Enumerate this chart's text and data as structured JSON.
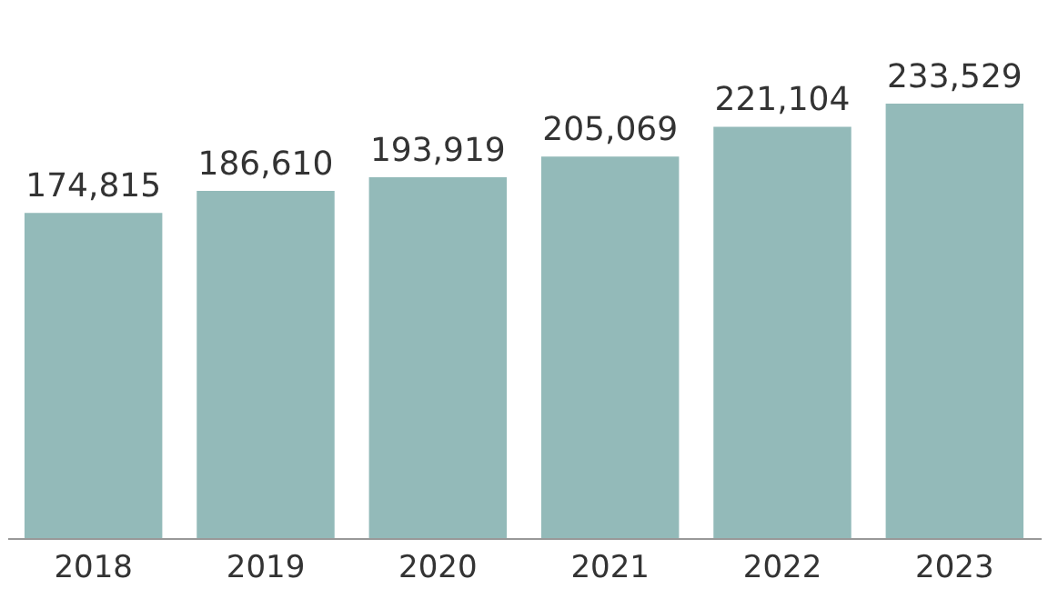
{
  "chart_data": {
    "type": "bar",
    "categories": [
      "2018",
      "2019",
      "2020",
      "2021",
      "2022",
      "2023"
    ],
    "values": [
      174815,
      186610,
      193919,
      205069,
      221104,
      233529
    ],
    "value_labels": [
      "174,815",
      "186,610",
      "193,919",
      "205,069",
      "221,104",
      "233,529"
    ],
    "color": "#93bab9"
  }
}
